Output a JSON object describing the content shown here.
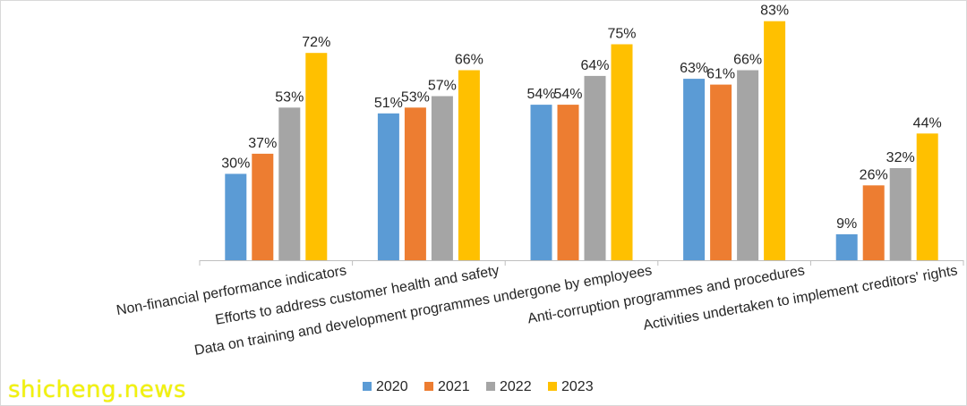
{
  "chart_data": {
    "type": "bar",
    "categories": [
      "Non-financial performance indicators",
      "Efforts to address customer health and safety",
      "Data on training and development programmes undergone by employees",
      "Anti-corruption programmes and procedures",
      "Activities undertaken to implement creditors' rights"
    ],
    "series": [
      {
        "name": "2020",
        "color": "#5b9bd5",
        "values": [
          30,
          51,
          54,
          63,
          9
        ]
      },
      {
        "name": "2021",
        "color": "#ed7d31",
        "values": [
          37,
          53,
          54,
          61,
          26
        ]
      },
      {
        "name": "2022",
        "color": "#a5a5a5",
        "values": [
          53,
          57,
          64,
          66,
          32
        ]
      },
      {
        "name": "2023",
        "color": "#ffc000",
        "values": [
          72,
          66,
          75,
          83,
          44
        ]
      }
    ],
    "value_suffix": "%",
    "ylim": [
      0,
      85
    ],
    "grid": false,
    "legend_position": "bottom"
  },
  "watermark": {
    "text": "shicheng.news"
  }
}
